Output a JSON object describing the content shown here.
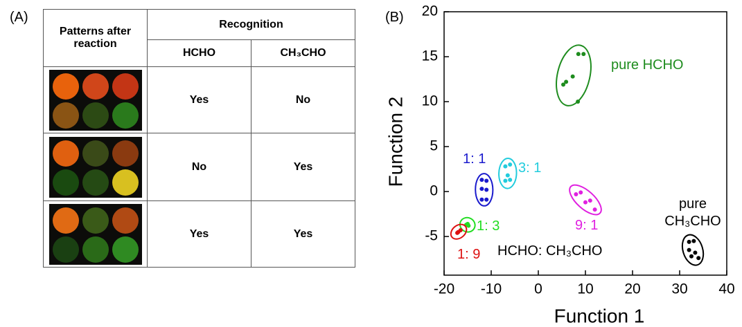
{
  "panel_a": {
    "label": "(A)",
    "table": {
      "header": {
        "patterns": "Patterns after reaction",
        "recognition": "Recognition",
        "columns": [
          "HCHO",
          "CH₃CHO"
        ]
      },
      "rows": [
        [
          "Yes",
          "No"
        ],
        [
          "No",
          "Yes"
        ],
        [
          "Yes",
          "Yes"
        ]
      ]
    }
  },
  "chart_data": {
    "type": "scatter",
    "panel_label": "(B)",
    "xlabel": "Function 1",
    "ylabel": "Function 2",
    "annotation": "HCHO: CH₃CHO",
    "xlim": [
      -20,
      40
    ],
    "ylim": [
      -9.3,
      20
    ],
    "xticks": [
      -20,
      -10,
      0,
      10,
      20,
      30,
      40
    ],
    "yticks": [
      -5,
      0,
      5,
      10,
      15,
      20
    ],
    "series": [
      {
        "name": "pure HCHO",
        "color": "#1e8c1e",
        "x": [
          8.5,
          9.6,
          7.3,
          5.9,
          5.3,
          8.4
        ],
        "y": [
          15.3,
          15.3,
          12.8,
          12.2,
          11.9,
          10.0
        ]
      },
      {
        "name": "1: 1",
        "color": "#1a1acd",
        "x": [
          -12,
          -11,
          -12,
          -11,
          -12,
          -11
        ],
        "y": [
          1.3,
          1.2,
          0.3,
          0.2,
          -0.9,
          -0.9
        ]
      },
      {
        "name": "3: 1",
        "color": "#22ccdd",
        "x": [
          -7,
          -6,
          -6.5,
          -7,
          -6
        ],
        "y": [
          2.8,
          3.0,
          1.8,
          1.2,
          1.3
        ]
      },
      {
        "name": "9: 1",
        "color": "#e020e0",
        "x": [
          8,
          9,
          11,
          12,
          10
        ],
        "y": [
          -0.3,
          -0.1,
          -1.0,
          -2.0,
          -1.2
        ]
      },
      {
        "name": "1: 3",
        "color": "#22dd22",
        "x": [
          -15,
          -14.8,
          -15.3
        ],
        "y": [
          -3.6,
          -3.8,
          -3.7
        ]
      },
      {
        "name": "1: 9",
        "color": "#dd1111",
        "x": [
          -17,
          -16.5,
          -17.2
        ],
        "y": [
          -4.5,
          -4.3,
          -4.6
        ]
      },
      {
        "name": "pure CH₃CHO",
        "color": "#000000",
        "x": [
          32,
          33,
          32,
          33.3,
          34,
          32.5
        ],
        "y": [
          -5.6,
          -5.5,
          -6.5,
          -6.8,
          -7.4,
          -7.2
        ]
      }
    ]
  }
}
